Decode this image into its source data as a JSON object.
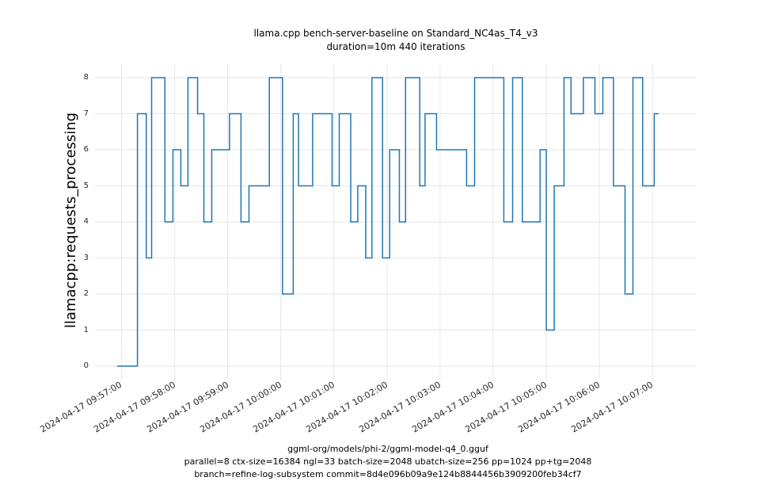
{
  "title": {
    "line1": "llama.cpp bench-server-baseline on Standard_NC4as_T4_v3",
    "line2": "duration=10m 440 iterations"
  },
  "footer": {
    "line1": "ggml-org/models/phi-2/ggml-model-q4_0.gguf",
    "line2": "parallel=8 ctx-size=16384 ngl=33 batch-size=2048 ubatch-size=256 pp=1024 pp+tg=2048",
    "line3": "branch=refine-log-subsystem commit=8d4e096b09a9e124b8844456b3909200feb34cf7"
  },
  "chart_data": {
    "type": "line",
    "line_style": "step-after",
    "title": "llama.cpp bench-server-baseline on Standard_NC4as_T4_v3\nduration=10m 440 iterations",
    "xlabel": "ggml-org/models/phi-2/ggml-model-q4_0.gguf parallel=8 ctx-size=16384 ngl=33 batch-size=2048 ubatch-size=256 pp=1024 pp+tg=2048 branch=refine-log-subsystem commit=8d4e096b09a9e124b8844456b3909200feb34cf7",
    "ylabel": "llamacpp:requests_processing",
    "ylim": [
      0,
      8
    ],
    "grid": true,
    "legend": "none",
    "line_color": "#1f77b4",
    "grid_color": "#e6e6e6",
    "y_ticks": [
      "0",
      "1",
      "2",
      "3",
      "4",
      "5",
      "6",
      "7",
      "8"
    ],
    "x_ticks": [
      "2024-04-17 09:57:00",
      "2024-04-17 09:58:00",
      "2024-04-17 09:59:00",
      "2024-04-17 10:00:00",
      "2024-04-17 10:01:00",
      "2024-04-17 10:02:00",
      "2024-04-17 10:03:00",
      "2024-04-17 10:04:00",
      "2024-04-17 10:05:00",
      "2024-04-17 10:06:00",
      "2024-04-17 10:07:00"
    ],
    "x_tick_seconds": [
      0,
      60,
      120,
      180,
      240,
      300,
      360,
      420,
      480,
      540,
      600
    ],
    "x_domain_seconds": [
      -30,
      650
    ],
    "series": [
      {
        "name": "llamacpp:requests_processing",
        "points_format": "[seconds_from_09:57:00, value]",
        "points": [
          [
            -5,
            0
          ],
          [
            18,
            7
          ],
          [
            28,
            3
          ],
          [
            34,
            8
          ],
          [
            49,
            4
          ],
          [
            58,
            6
          ],
          [
            67,
            5
          ],
          [
            75,
            8
          ],
          [
            86,
            7
          ],
          [
            93,
            4
          ],
          [
            102,
            6
          ],
          [
            122,
            7
          ],
          [
            135,
            4
          ],
          [
            144,
            5
          ],
          [
            167,
            8
          ],
          [
            182,
            2
          ],
          [
            194,
            7
          ],
          [
            200,
            5
          ],
          [
            216,
            7
          ],
          [
            238,
            5
          ],
          [
            246,
            7
          ],
          [
            259,
            4
          ],
          [
            267,
            5
          ],
          [
            276,
            3
          ],
          [
            283,
            8
          ],
          [
            295,
            3
          ],
          [
            303,
            6
          ],
          [
            314,
            4
          ],
          [
            321,
            8
          ],
          [
            337,
            5
          ],
          [
            343,
            7
          ],
          [
            356,
            6
          ],
          [
            390,
            5
          ],
          [
            399,
            8
          ],
          [
            432,
            4
          ],
          [
            442,
            8
          ],
          [
            453,
            4
          ],
          [
            473,
            6
          ],
          [
            480,
            1
          ],
          [
            489,
            5
          ],
          [
            500,
            8
          ],
          [
            508,
            7
          ],
          [
            522,
            8
          ],
          [
            535,
            7
          ],
          [
            544,
            8
          ],
          [
            556,
            5
          ],
          [
            569,
            2
          ],
          [
            578,
            8
          ],
          [
            589,
            5
          ],
          [
            602,
            7
          ]
        ],
        "end_t": 607
      }
    ]
  }
}
